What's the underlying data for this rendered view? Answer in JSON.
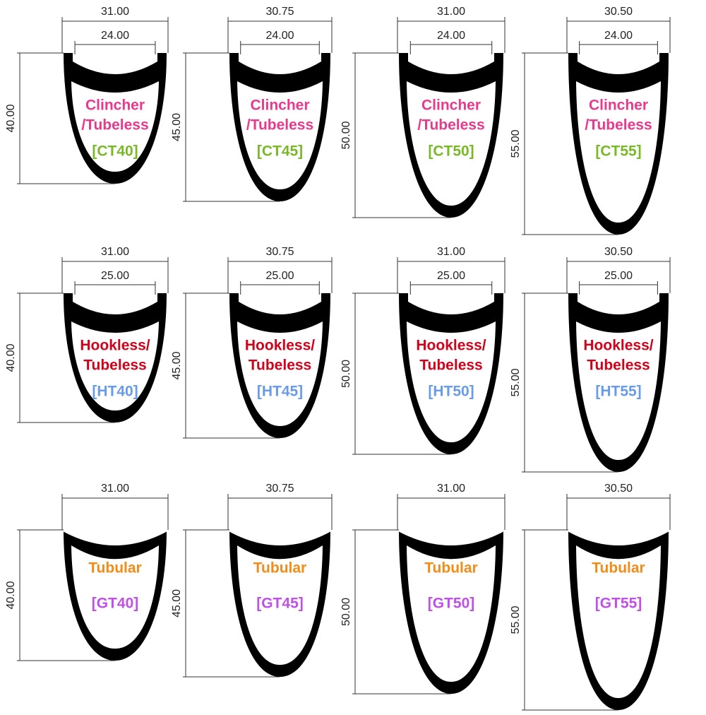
{
  "panels": [
    {
      "outer_width": "31.00",
      "inner_width": "24.00",
      "depth": "40.00",
      "rim_type": [
        "Clincher",
        "/Tubeless"
      ],
      "model": "[CT40]"
    },
    {
      "outer_width": "30.75",
      "inner_width": "24.00",
      "depth": "45.00",
      "rim_type": [
        "Clincher",
        "/Tubeless"
      ],
      "model": "[CT45]"
    },
    {
      "outer_width": "31.00",
      "inner_width": "24.00",
      "depth": "50.00",
      "rim_type": [
        "Clincher",
        "/Tubeless"
      ],
      "model": "[CT50]"
    },
    {
      "outer_width": "30.50",
      "inner_width": "24.00",
      "depth": "55.00",
      "rim_type": [
        "Clincher",
        "/Tubeless"
      ],
      "model": "[CT55]"
    },
    {
      "outer_width": "31.00",
      "inner_width": "25.00",
      "depth": "40.00",
      "rim_type": [
        "Hookless/",
        "Tubeless"
      ],
      "model": "[HT40]"
    },
    {
      "outer_width": "30.75",
      "inner_width": "25.00",
      "depth": "45.00",
      "rim_type": [
        "Hookless/",
        "Tubeless"
      ],
      "model": "[HT45]"
    },
    {
      "outer_width": "31.00",
      "inner_width": "25.00",
      "depth": "50.00",
      "rim_type": [
        "Hookless/",
        "Tubeless"
      ],
      "model": "[HT50]"
    },
    {
      "outer_width": "30.50",
      "inner_width": "25.00",
      "depth": "55.00",
      "rim_type": [
        "Hookless/",
        "Tubeless"
      ],
      "model": "[HT55]"
    },
    {
      "outer_width": "31.00",
      "depth": "40.00",
      "rim_type": [
        "Tubular"
      ],
      "model": "[GT40]"
    },
    {
      "outer_width": "30.75",
      "depth": "45.00",
      "rim_type": [
        "Tubular"
      ],
      "model": "[GT45]"
    },
    {
      "outer_width": "31.00",
      "depth": "50.00",
      "rim_type": [
        "Tubular"
      ],
      "model": "[GT50]"
    },
    {
      "outer_width": "30.50",
      "depth": "55.00",
      "rim_type": [
        "Tubular"
      ],
      "model": "[GT55]"
    }
  ]
}
